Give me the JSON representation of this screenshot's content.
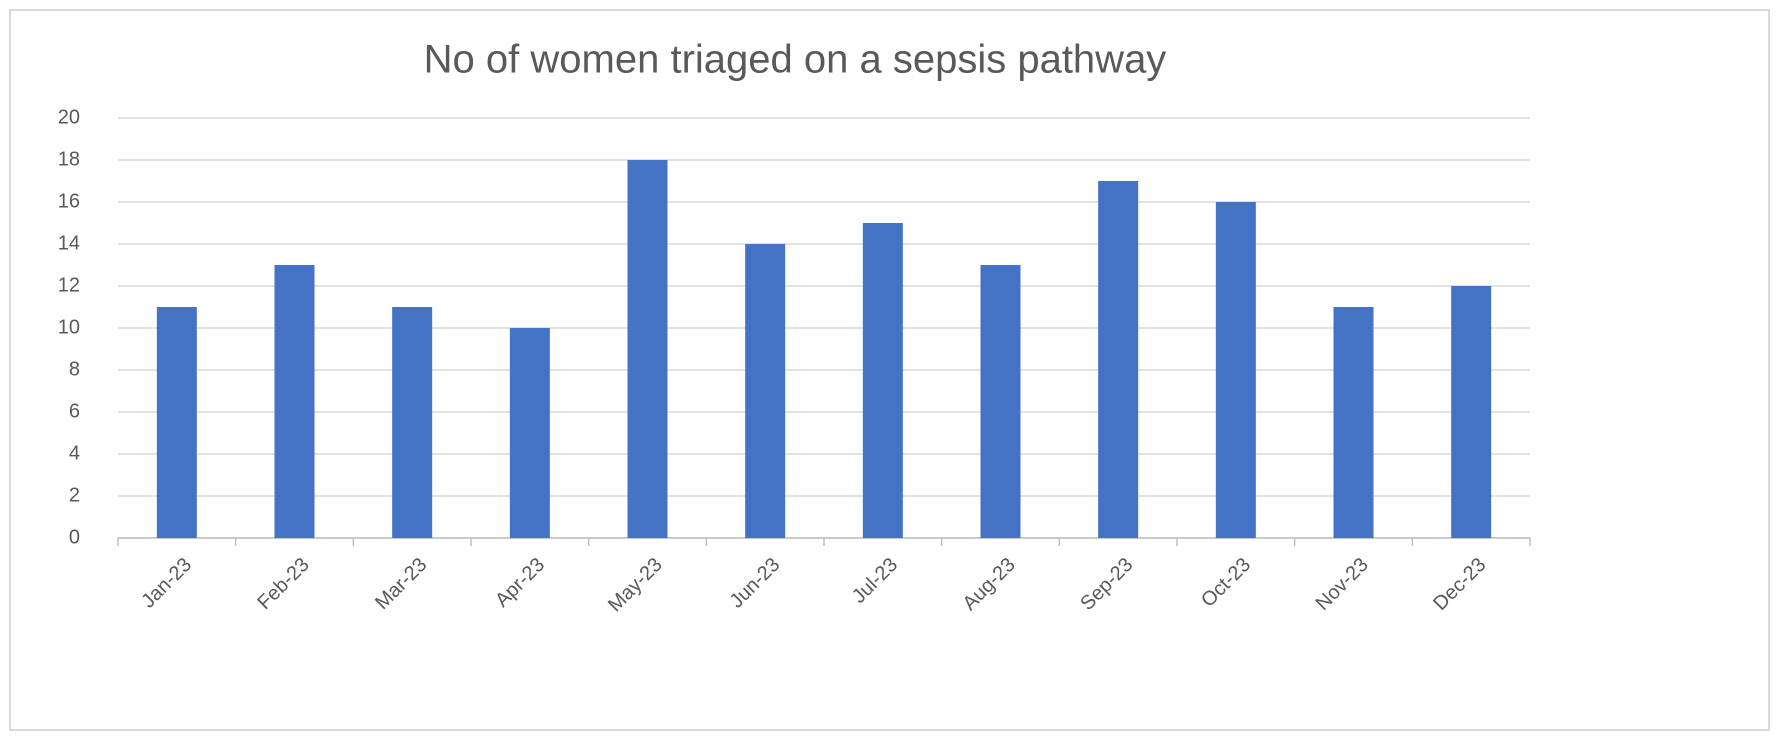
{
  "chart_data": {
    "type": "bar",
    "title": "No of women triaged on a sepsis pathway",
    "categories": [
      "Jan-23",
      "Feb-23",
      "Mar-23",
      "Apr-23",
      "May-23",
      "Jun-23",
      "Jul-23",
      "Aug-23",
      "Sep-23",
      "Oct-23",
      "Nov-23",
      "Dec-23"
    ],
    "values": [
      11,
      13,
      11,
      10,
      18,
      14,
      15,
      13,
      17,
      16,
      11,
      12
    ],
    "color": "#4472c4",
    "ylim": [
      0,
      20
    ],
    "yticks": [
      0,
      2,
      4,
      6,
      8,
      10,
      12,
      14,
      16,
      18,
      20
    ],
    "grid": true
  }
}
